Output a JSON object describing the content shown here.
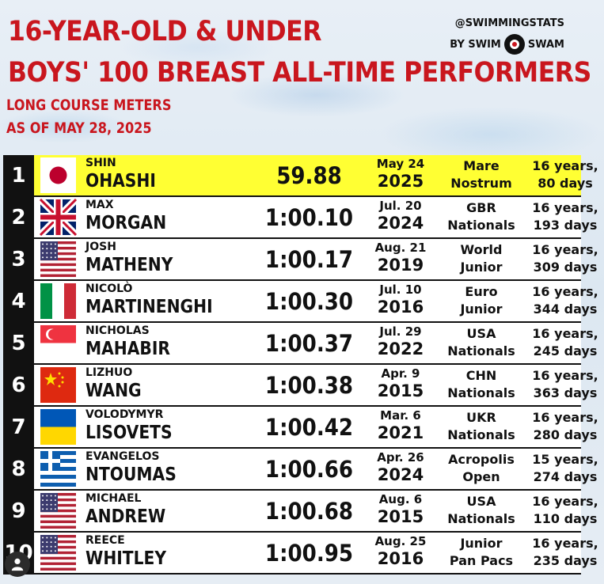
{
  "header": {
    "title_line1": "16-YEAR-OLD & UNDER",
    "title_line2": "BOYS' 100 BREAST ALL-TIME PERFORMERS",
    "subtitle_line1": "LONG COURSE METERS",
    "subtitle_line2": "AS OF MAY 28, 2025",
    "handle": "@SWIMMINGSTATS",
    "by": "BY SWIM",
    "swam": "SWAM"
  },
  "rows": [
    {
      "rank": "1",
      "first": "SHIN",
      "last": "OHASHI",
      "time": "59.88",
      "date": "May 24",
      "year": "2025",
      "meet1": "Mare",
      "meet2": "Nostrum",
      "age1": "16 years,",
      "age2": "80 days",
      "flag": "japan"
    },
    {
      "rank": "2",
      "first": "MAX",
      "last": "MORGAN",
      "time": "1:00.10",
      "date": "Jul. 20",
      "year": "2024",
      "meet1": "GBR",
      "meet2": "Nationals",
      "age1": "16 years,",
      "age2": "193 days",
      "flag": "uk"
    },
    {
      "rank": "3",
      "first": "JOSH",
      "last": "MATHENY",
      "time": "1:00.17",
      "date": "Aug. 21",
      "year": "2019",
      "meet1": "World",
      "meet2": "Junior",
      "age1": "16 years,",
      "age2": "309 days",
      "flag": "usa"
    },
    {
      "rank": "4",
      "first": "NICOLÒ",
      "last": "MARTINENGHI",
      "time": "1:00.30",
      "date": "Jul. 10",
      "year": "2016",
      "meet1": "Euro",
      "meet2": "Junior",
      "age1": "16 years,",
      "age2": "344 days",
      "flag": "italy"
    },
    {
      "rank": "5",
      "first": "NICHOLAS",
      "last": "MAHABIR",
      "time": "1:00.37",
      "date": "Jul. 29",
      "year": "2022",
      "meet1": "USA",
      "meet2": "Nationals",
      "age1": "16 years,",
      "age2": "245 days",
      "flag": "singapore"
    },
    {
      "rank": "6",
      "first": "LIZHUO",
      "last": "WANG",
      "time": "1:00.38",
      "date": "Apr. 9",
      "year": "2015",
      "meet1": "CHN",
      "meet2": "Nationals",
      "age1": "16 years,",
      "age2": "363 days",
      "flag": "china"
    },
    {
      "rank": "7",
      "first": "VOLODYMYR",
      "last": "LISOVETS",
      "time": "1:00.42",
      "date": "Mar. 6",
      "year": "2021",
      "meet1": "UKR",
      "meet2": "Nationals",
      "age1": "16 years,",
      "age2": "280 days",
      "flag": "ukraine"
    },
    {
      "rank": "8",
      "first": "EVANGELOS",
      "last": "NTOUMAS",
      "time": "1:00.66",
      "date": "Apr. 26",
      "year": "2024",
      "meet1": "Acropolis",
      "meet2": "Open",
      "age1": "15 years,",
      "age2": "274 days",
      "flag": "greece"
    },
    {
      "rank": "9",
      "first": "MICHAEL",
      "last": "ANDREW",
      "time": "1:00.68",
      "date": "Aug. 6",
      "year": "2015",
      "meet1": "USA",
      "meet2": "Nationals",
      "age1": "16 years,",
      "age2": "110 days",
      "flag": "usa"
    },
    {
      "rank": "10",
      "first": "REECE",
      "last": "WHITLEY",
      "time": "1:00.95",
      "date": "Aug. 25",
      "year": "2016",
      "meet1": "Junior",
      "meet2": "Pan Pacs",
      "age1": "16 years,",
      "age2": "235 days",
      "flag": "usa"
    }
  ]
}
